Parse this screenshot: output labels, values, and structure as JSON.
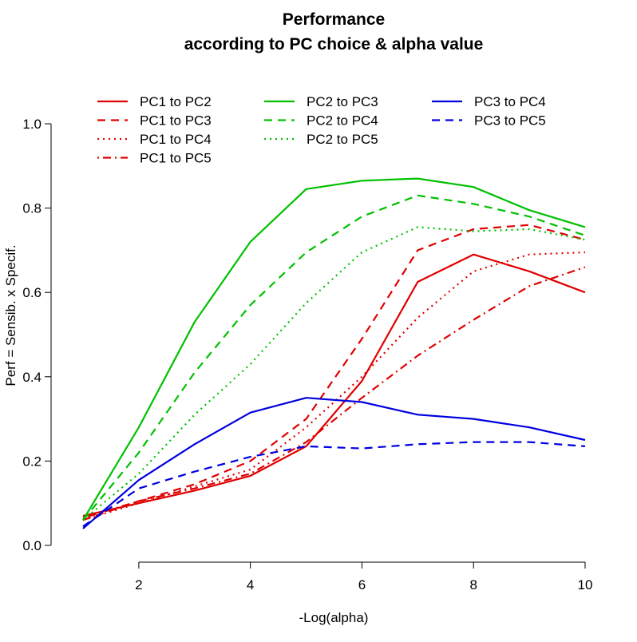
{
  "chart_data": {
    "type": "line",
    "title": [
      "Performance",
      "according to PC choice & alpha value"
    ],
    "xlabel": "-Log(alpha)",
    "ylabel": "Perf = Sensib. x Specif.",
    "xlim": [
      1,
      10
    ],
    "ylim": [
      0,
      1
    ],
    "xticks": [
      "2",
      "4",
      "6",
      "8",
      "10"
    ],
    "yticks": [
      "0.0",
      "0.2",
      "0.4",
      "0.6",
      "0.8",
      "1.0"
    ],
    "grid": false,
    "legend_position": "top",
    "colors": {
      "red": "#e00000",
      "green": "#00c000",
      "blue": "#0000e0"
    },
    "x": [
      1,
      2,
      3,
      4,
      5,
      6,
      7,
      8,
      9,
      10
    ],
    "series": [
      {
        "name": "PC1 to PC2",
        "color": "red",
        "dash": "solid",
        "values": [
          0.07,
          0.1,
          0.13,
          0.165,
          0.235,
          0.39,
          0.625,
          0.69,
          0.65,
          0.6
        ]
      },
      {
        "name": "PC1 to PC3",
        "color": "red",
        "dash": "dashed",
        "values": [
          0.06,
          0.105,
          0.145,
          0.2,
          0.3,
          0.49,
          0.7,
          0.75,
          0.76,
          0.725
        ]
      },
      {
        "name": "PC1 to PC4",
        "color": "red",
        "dash": "dotted",
        "values": [
          0.06,
          0.1,
          0.14,
          0.18,
          0.28,
          0.4,
          0.54,
          0.65,
          0.69,
          0.695
        ]
      },
      {
        "name": "PC1 to PC5",
        "color": "red",
        "dash": "dotdash",
        "values": [
          0.065,
          0.105,
          0.135,
          0.17,
          0.245,
          0.35,
          0.45,
          0.535,
          0.615,
          0.66
        ]
      },
      {
        "name": "PC2 to PC3",
        "color": "green",
        "dash": "solid",
        "values": [
          0.06,
          0.28,
          0.53,
          0.72,
          0.845,
          0.865,
          0.87,
          0.85,
          0.795,
          0.755
        ]
      },
      {
        "name": "PC2 to PC4",
        "color": "green",
        "dash": "dashed",
        "values": [
          0.06,
          0.22,
          0.41,
          0.57,
          0.695,
          0.78,
          0.83,
          0.81,
          0.78,
          0.735
        ]
      },
      {
        "name": "PC2 to PC5",
        "color": "green",
        "dash": "dotted",
        "values": [
          0.06,
          0.17,
          0.31,
          0.43,
          0.575,
          0.695,
          0.755,
          0.745,
          0.75,
          0.725
        ]
      },
      {
        "name": "PC3 to PC4",
        "color": "blue",
        "dash": "solid",
        "values": [
          0.04,
          0.155,
          0.24,
          0.315,
          0.35,
          0.34,
          0.31,
          0.3,
          0.28,
          0.25
        ]
      },
      {
        "name": "PC3 to PC5",
        "color": "blue",
        "dash": "dashed",
        "values": [
          0.045,
          0.135,
          0.175,
          0.21,
          0.235,
          0.23,
          0.24,
          0.245,
          0.245,
          0.235
        ]
      }
    ]
  }
}
